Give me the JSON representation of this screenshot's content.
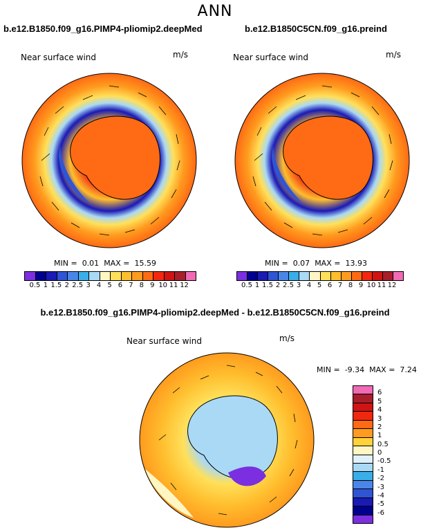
{
  "title": "ANN",
  "panel1": {
    "case": "b.e12.B1850.f09_g16.PIMP4-pliomip2.deepMed",
    "variable": "Near surface wind",
    "units": "m/s",
    "min_label": "MIN =",
    "min_value": "0.01",
    "max_label": "MAX =",
    "max_value": "15.59"
  },
  "panel2": {
    "case": "b.e12.B1850C5CN.f09_g16.preind",
    "variable": "Near surface wind",
    "units": "m/s",
    "min_label": "MIN =",
    "min_value": "0.07",
    "max_label": "MAX =",
    "max_value": "13.93"
  },
  "panel3": {
    "case": "b.e12.B1850.f09_g16.PIMP4-pliomip2.deepMed - b.e12.B1850C5CN.f09_g16.preind",
    "variable": "Near surface wind",
    "units": "m/s",
    "min_label": "MIN =",
    "min_value": "-9.34",
    "max_label": "MAX =",
    "max_value": "7.24"
  },
  "colorbar_abs": {
    "ticks": [
      "0.5",
      "1",
      "1.5",
      "2",
      "2.5",
      "3",
      "4",
      "5",
      "6",
      "7",
      "8",
      "9",
      "10",
      "11",
      "12"
    ],
    "colors": [
      "#7b2fe0",
      "#00008f",
      "#1a1ab5",
      "#2f55d4",
      "#4a86e8",
      "#39aee8",
      "#a9d9f5",
      "#fff6c4",
      "#ffe05a",
      "#ffbe2e",
      "#ff9b1e",
      "#ff6a14",
      "#f0280f",
      "#d01414",
      "#a81e2a",
      "#f06ab4"
    ]
  },
  "colorbar_diff": {
    "ticks": [
      "6",
      "5",
      "4",
      "3",
      "2",
      "1",
      "0.5",
      "0",
      "-0.5",
      "-1",
      "-2",
      "-3",
      "-4",
      "-5",
      "-6"
    ],
    "colors": [
      "#f06ab4",
      "#a81e2a",
      "#d01414",
      "#f0280f",
      "#ff6a14",
      "#ff9b1e",
      "#ffd23a",
      "#fff6c4",
      "#dff1fb",
      "#a9d9f5",
      "#39aee8",
      "#4a86e8",
      "#2f55d4",
      "#1a1ab5",
      "#00008f",
      "#7b2fe0"
    ]
  }
}
